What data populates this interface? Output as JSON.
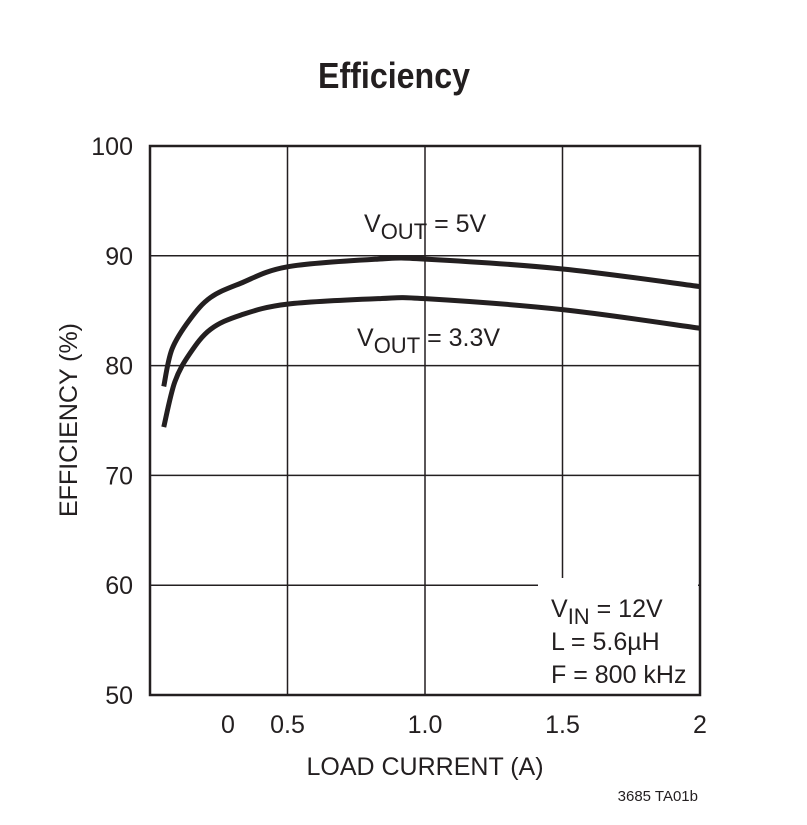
{
  "chart_data": {
    "type": "line",
    "title": "Efficiency",
    "xlabel": "LOAD CURRENT (A)",
    "ylabel": "EFFICIENCY (%)",
    "xlim": [
      0,
      2
    ],
    "ylim": [
      50,
      100
    ],
    "x_ticks": [
      "0",
      "0.5",
      "1.0",
      "1.5",
      "2"
    ],
    "y_ticks": [
      "100",
      "90",
      "80",
      "70",
      "60",
      "50"
    ],
    "grid": true,
    "series": [
      {
        "name": "VOUT = 5V",
        "label_main": "V",
        "label_sub": "OUT",
        "label_rest": " = 5V",
        "points": [
          [
            0.05,
            78.1
          ],
          [
            0.08,
            81.5
          ],
          [
            0.145,
            84.2
          ],
          [
            0.22,
            86.2
          ],
          [
            0.33,
            87.5
          ],
          [
            0.5,
            89.0
          ],
          [
            0.83,
            89.7
          ],
          [
            1.0,
            89.7
          ],
          [
            1.5,
            88.8
          ],
          [
            2.0,
            87.2
          ]
        ]
      },
      {
        "name": "VOUT = 3.3V",
        "label_main": "V",
        "label_sub": "OUT",
        "label_rest": " = 3.3V",
        "points": [
          [
            0.05,
            74.4
          ],
          [
            0.09,
            78.5
          ],
          [
            0.145,
            81.1
          ],
          [
            0.22,
            83.3
          ],
          [
            0.33,
            84.6
          ],
          [
            0.5,
            85.6
          ],
          [
            0.83,
            86.1
          ],
          [
            1.0,
            86.1
          ],
          [
            1.5,
            85.1
          ],
          [
            2.0,
            83.4
          ]
        ]
      }
    ],
    "annotation": {
      "vin_main": "V",
      "vin_sub": "IN",
      "vin_rest": " = 12V",
      "inductor": "L = 5.6µH",
      "frequency": "F = 800 kHz"
    },
    "footnote": "3685 TA01b",
    "line_color": "#231f20"
  }
}
